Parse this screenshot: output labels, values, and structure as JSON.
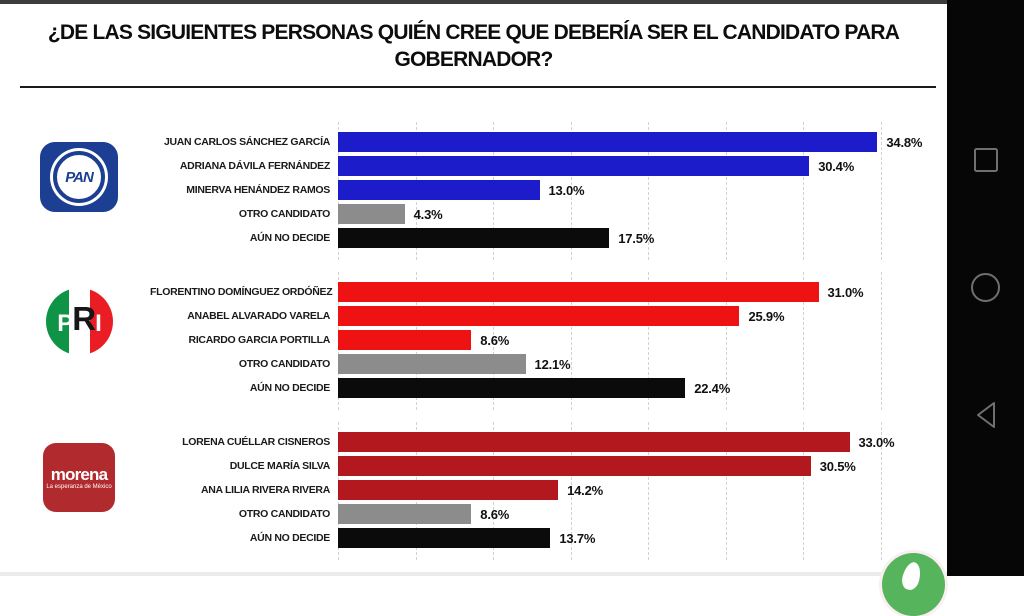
{
  "title": {
    "line1": "¿DE LAS SIGUIENTES PERSONAS QUIÉN CREE QUE DEBERÍA SER EL CANDIDATO PARA",
    "line2": "GOBERNADOR?"
  },
  "chart_data": {
    "type": "bar",
    "orientation": "horizontal",
    "unit": "%",
    "axis": {
      "min": 0,
      "max": 39,
      "gridline_step_pct": 5,
      "gridlines_pct": [
        0,
        5,
        10,
        15,
        20,
        25,
        30,
        35
      ]
    },
    "palette": {
      "pan": "#1c1ccb",
      "pri": "#ee1212",
      "morena": "#b2181d",
      "otro": "#8c8c8c",
      "nodecide": "#0b0b0b"
    },
    "groups": [
      {
        "party": "PAN",
        "logo": {
          "type": "pan",
          "text": "PAN"
        },
        "bars": [
          {
            "label": "JUAN CARLOS SÁNCHEZ GARCÍA",
            "value": 34.8,
            "display": "34.8%",
            "color_key": "pan"
          },
          {
            "label": "ADRIANA DÁVILA FERNÁNDEZ",
            "value": 30.4,
            "display": "30.4%",
            "color_key": "pan"
          },
          {
            "label": "MINERVA HENÁNDEZ RAMOS",
            "value": 13.0,
            "display": "13.0%",
            "color_key": "pan"
          },
          {
            "label": "OTRO CANDIDATO",
            "value": 4.3,
            "display": "4.3%",
            "color_key": "otro"
          },
          {
            "label": "AÚN NO DECIDE",
            "value": 17.5,
            "display": "17.5%",
            "color_key": "nodecide"
          }
        ]
      },
      {
        "party": "PRI",
        "logo": {
          "type": "pri",
          "letters": [
            "P",
            "R",
            "I"
          ]
        },
        "bars": [
          {
            "label": "FLORENTINO DOMÍNGUEZ ORDÓÑEZ",
            "value": 31.0,
            "display": "31.0%",
            "color_key": "pri"
          },
          {
            "label": "ANABEL ALVARADO VARELA",
            "value": 25.9,
            "display": "25.9%",
            "color_key": "pri"
          },
          {
            "label": "RICARDO GARCIA PORTILLA",
            "value": 8.6,
            "display": "8.6%",
            "color_key": "pri"
          },
          {
            "label": "OTRO CANDIDATO",
            "value": 12.1,
            "display": "12.1%",
            "color_key": "otro"
          },
          {
            "label": "AÚN NO DECIDE",
            "value": 22.4,
            "display": "22.4%",
            "color_key": "nodecide"
          }
        ]
      },
      {
        "party": "MORENA",
        "logo": {
          "type": "morena",
          "text": "morena",
          "subtext": "La esperanza de México"
        },
        "bars": [
          {
            "label": "LORENA CUÉLLAR CISNEROS",
            "value": 33.0,
            "display": "33.0%",
            "color_key": "morena"
          },
          {
            "label": "DULCE MARÍA SILVA",
            "value": 30.5,
            "display": "30.5%",
            "color_key": "morena"
          },
          {
            "label": "ANA LILIA RIVERA RIVERA",
            "value": 14.2,
            "display": "14.2%",
            "color_key": "morena"
          },
          {
            "label": "OTRO CANDIDATO",
            "value": 8.6,
            "display": "8.6%",
            "color_key": "otro"
          },
          {
            "label": "AÚN NO DECIDE",
            "value": 13.7,
            "display": "13.7%",
            "color_key": "nodecide"
          }
        ]
      }
    ]
  },
  "nav": {
    "recents_icon": "recents-square-icon",
    "home_icon": "home-circle-icon",
    "back_icon": "back-triangle-icon"
  },
  "fab_color": "#55b45c"
}
